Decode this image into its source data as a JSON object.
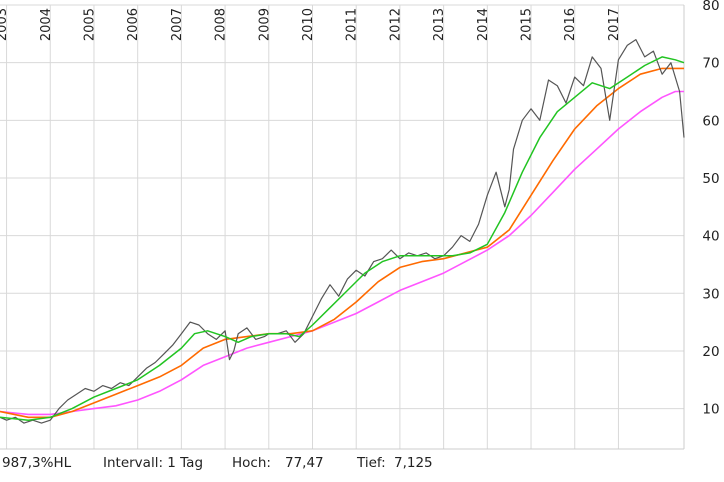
{
  "chart_data": {
    "type": "line",
    "x_labels": [
      "2003",
      "2004",
      "2005",
      "2006",
      "2007",
      "2008",
      "2009",
      "2010",
      "2011",
      "2012",
      "2013",
      "2014",
      "2015",
      "2016",
      "2017"
    ],
    "yticks": [
      10,
      20,
      30,
      40,
      50,
      60,
      70,
      80
    ],
    "ylim": [
      3,
      80
    ],
    "xlim": [
      2002.85,
      2018.5
    ],
    "grid": true,
    "colors": {
      "price": "#555555",
      "ma_short": "#22c422",
      "ma_mid": "#ff6a00",
      "ma_long": "#ff55ff",
      "grid": "#d9d9d9"
    },
    "series": [
      {
        "key": "price",
        "x": [
          2002.85,
          2003.0,
          2003.2,
          2003.4,
          2003.6,
          2003.8,
          2004.0,
          2004.2,
          2004.4,
          2004.6,
          2004.8,
          2005.0,
          2005.2,
          2005.4,
          2005.6,
          2005.8,
          2006.0,
          2006.2,
          2006.4,
          2006.6,
          2006.8,
          2007.0,
          2007.2,
          2007.4,
          2007.6,
          2007.8,
          2008.0,
          2008.1,
          2008.2,
          2008.3,
          2008.5,
          2008.7,
          2008.9,
          2009.0,
          2009.2,
          2009.4,
          2009.6,
          2009.8,
          2010.0,
          2010.2,
          2010.4,
          2010.6,
          2010.8,
          2011.0,
          2011.2,
          2011.4,
          2011.6,
          2011.8,
          2012.0,
          2012.2,
          2012.4,
          2012.6,
          2012.8,
          2013.0,
          2013.2,
          2013.4,
          2013.6,
          2013.8,
          2014.0,
          2014.2,
          2014.4,
          2014.5,
          2014.6,
          2014.8,
          2015.0,
          2015.2,
          2015.4,
          2015.6,
          2015.8,
          2016.0,
          2016.2,
          2016.4,
          2016.6,
          2016.8,
          2017.0,
          2017.2,
          2017.4,
          2017.6,
          2017.8,
          2018.0,
          2018.2,
          2018.4,
          2018.5
        ],
        "y": [
          8.5,
          8.0,
          8.5,
          7.5,
          8.0,
          7.5,
          8.0,
          10.0,
          11.5,
          12.5,
          13.5,
          13.0,
          14.0,
          13.5,
          14.5,
          14.0,
          15.5,
          17.0,
          18.0,
          19.5,
          21.0,
          23.0,
          25.0,
          24.5,
          23.0,
          22.0,
          23.5,
          18.5,
          20.0,
          23.0,
          24.0,
          22.0,
          22.5,
          23.0,
          23.0,
          23.5,
          21.5,
          23.0,
          26.0,
          29.0,
          31.5,
          29.5,
          32.5,
          34.0,
          33.0,
          35.5,
          36.0,
          37.5,
          36.0,
          37.0,
          36.5,
          37.0,
          36.0,
          36.5,
          38.0,
          40.0,
          39.0,
          42.0,
          47.0,
          51.0,
          45.0,
          48.0,
          55.0,
          60.0,
          62.0,
          60.0,
          67.0,
          66.0,
          63.0,
          67.5,
          66.0,
          71.0,
          69.0,
          60.0,
          70.5,
          73.0,
          74.0,
          71.0,
          72.0,
          68.0,
          70.0,
          65.0,
          57.0
        ]
      },
      {
        "key": "ma_short",
        "x": [
          2002.85,
          2003.5,
          2004.0,
          2004.5,
          2005.0,
          2005.5,
          2006.0,
          2006.5,
          2007.0,
          2007.3,
          2007.6,
          2008.0,
          2008.3,
          2008.6,
          2009.0,
          2009.4,
          2009.7,
          2010.0,
          2010.4,
          2010.8,
          2011.2,
          2011.6,
          2012.0,
          2012.4,
          2012.8,
          2013.2,
          2013.6,
          2014.0,
          2014.4,
          2014.8,
          2015.2,
          2015.6,
          2016.0,
          2016.4,
          2016.8,
          2017.2,
          2017.6,
          2018.0,
          2018.3,
          2018.5
        ],
        "y": [
          8.5,
          8.0,
          8.5,
          10.0,
          12.0,
          13.5,
          15.0,
          17.5,
          20.5,
          23.0,
          23.5,
          22.5,
          21.5,
          22.5,
          23.0,
          23.0,
          22.5,
          24.5,
          27.5,
          30.5,
          33.5,
          35.5,
          36.5,
          36.5,
          36.5,
          36.5,
          37.0,
          38.5,
          44.0,
          51.0,
          57.0,
          61.5,
          64.0,
          66.5,
          65.5,
          67.5,
          69.5,
          71.0,
          70.5,
          70.0
        ]
      },
      {
        "key": "ma_mid",
        "x": [
          2002.85,
          2003.5,
          2004.0,
          2004.5,
          2005.0,
          2005.5,
          2006.0,
          2006.5,
          2007.0,
          2007.5,
          2008.0,
          2008.5,
          2009.0,
          2009.5,
          2010.0,
          2010.5,
          2011.0,
          2011.5,
          2012.0,
          2012.5,
          2013.0,
          2013.5,
          2014.0,
          2014.5,
          2015.0,
          2015.5,
          2016.0,
          2016.5,
          2017.0,
          2017.5,
          2018.0,
          2018.3,
          2018.5
        ],
        "y": [
          9.5,
          8.5,
          8.5,
          9.5,
          11.0,
          12.5,
          14.0,
          15.5,
          17.5,
          20.5,
          22.0,
          22.5,
          23.0,
          23.0,
          23.5,
          25.5,
          28.5,
          32.0,
          34.5,
          35.5,
          36.0,
          37.0,
          38.0,
          41.0,
          47.0,
          53.0,
          58.5,
          62.5,
          65.5,
          68.0,
          69.0,
          69.0,
          69.0
        ]
      },
      {
        "key": "ma_long",
        "x": [
          2002.85,
          2003.5,
          2004.0,
          2004.5,
          2005.0,
          2005.5,
          2006.0,
          2006.5,
          2007.0,
          2007.5,
          2008.0,
          2008.5,
          2009.0,
          2009.5,
          2010.0,
          2010.5,
          2011.0,
          2011.5,
          2012.0,
          2012.5,
          2013.0,
          2013.5,
          2014.0,
          2014.5,
          2015.0,
          2015.5,
          2016.0,
          2016.5,
          2017.0,
          2017.5,
          2018.0,
          2018.3,
          2018.5
        ],
        "y": [
          9.5,
          9.0,
          9.0,
          9.5,
          10.0,
          10.5,
          11.5,
          13.0,
          15.0,
          17.5,
          19.0,
          20.5,
          21.5,
          22.5,
          23.5,
          25.0,
          26.5,
          28.5,
          30.5,
          32.0,
          33.5,
          35.5,
          37.5,
          40.0,
          43.5,
          47.5,
          51.5,
          55.0,
          58.5,
          61.5,
          64.0,
          65.0,
          65.0
        ]
      }
    ]
  },
  "info": {
    "perf": "987,3%HL",
    "interval": "Intervall: 1 Tag",
    "high_label": "Hoch:",
    "high_value": "77,47",
    "low_label": "Tief:",
    "low_value": "7,125"
  }
}
